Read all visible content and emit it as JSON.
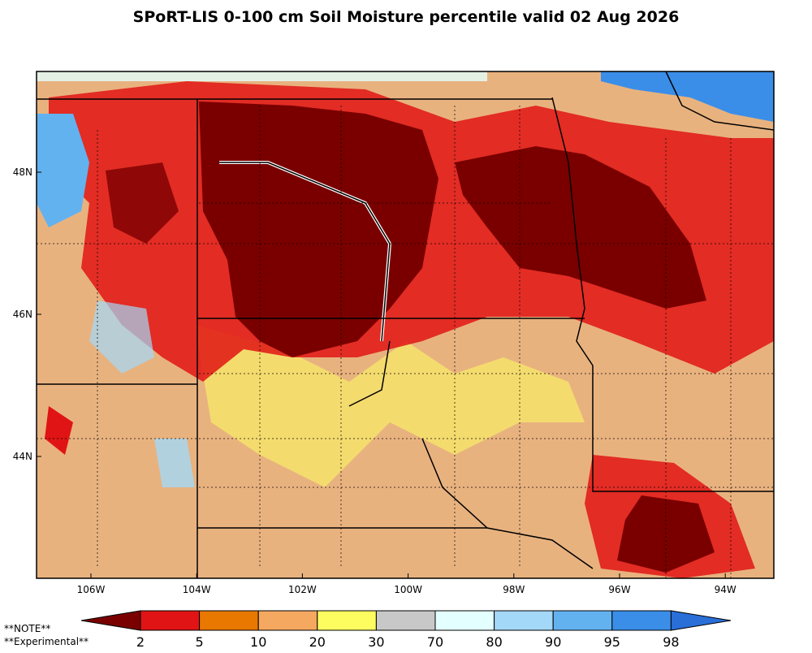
{
  "title": "SPoRT-LIS 0-100 cm Soil Moisture percentile valid 02 Aug 2026",
  "lon_labels": [
    "106W",
    "104W",
    "102W",
    "100W",
    "98W",
    "96W",
    "94W"
  ],
  "lat_labels": [
    "48N",
    "46N",
    "44N"
  ],
  "colorbar": {
    "ticks": [
      2,
      5,
      10,
      20,
      30,
      70,
      80,
      90,
      95,
      98
    ],
    "colors": [
      "#7a0000",
      "#e01414",
      "#e87800",
      "#f5a860",
      "#fdfd60",
      "#c8c8c8",
      "#e4ffff",
      "#a4d8f8",
      "#62b2f0",
      "#3a8ee8",
      "#2a6ed8"
    ]
  },
  "notes": [
    "**NOTE**",
    "**Experimental**"
  ]
}
